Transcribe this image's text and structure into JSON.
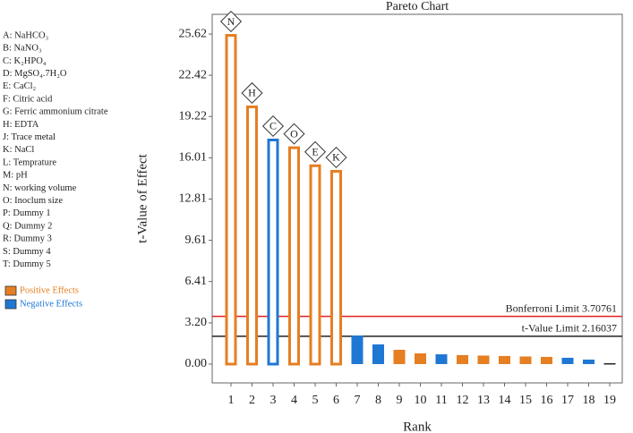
{
  "chart_data": {
    "type": "bar",
    "title": "Pareto Chart",
    "x_label": "Rank",
    "y_label": "t-Value of Effect",
    "categories": [
      1,
      2,
      3,
      4,
      5,
      6,
      7,
      8,
      9,
      10,
      11,
      12,
      13,
      14,
      15,
      16,
      17,
      18,
      19
    ],
    "values": [
      25.62,
      20.07,
      17.5,
      16.9,
      15.5,
      15.07,
      2.22,
      1.53,
      1.11,
      0.83,
      0.76,
      0.7,
      0.66,
      0.63,
      0.59,
      0.56,
      0.49,
      0.35,
      0.07
    ],
    "colors": [
      "#e67e22",
      "#e67e22",
      "#1f77d4",
      "#e67e22",
      "#e67e22",
      "#e67e22",
      "#1f77d4",
      "#1f77d4",
      "#e67e22",
      "#e67e22",
      "#1f77d4",
      "#e67e22",
      "#e67e22",
      "#e67e22",
      "#e67e22",
      "#e67e22",
      "#1f77d4",
      "#1f77d4",
      "#222222"
    ],
    "bar_labels": [
      "N",
      "H",
      "C",
      "O",
      "E",
      "K",
      null,
      null,
      null,
      null,
      null,
      null,
      null,
      null,
      null,
      null,
      null,
      null,
      null
    ],
    "ylim": [
      -1.46,
      27.15
    ],
    "yticks": [
      {
        "value": 0,
        "label": "0.00"
      },
      {
        "value": 3.2,
        "label": "3.20"
      },
      {
        "value": 6.41,
        "label": "6.41"
      },
      {
        "value": 9.61,
        "label": "9.61"
      },
      {
        "value": 12.81,
        "label": "12.81"
      },
      {
        "value": 16.01,
        "label": "16.01"
      },
      {
        "value": 19.22,
        "label": "19.22"
      },
      {
        "value": 22.42,
        "label": "22.42"
      },
      {
        "value": 25.62,
        "label": "25.62"
      }
    ],
    "reference_lines": [
      {
        "label": "Bonferroni Limit 3.70761",
        "value": 3.70761,
        "color": "#e02020"
      },
      {
        "label": "t-Value Limit 2.16037",
        "value": 2.16037,
        "color": "#222222"
      }
    ],
    "legend": [
      {
        "name": "Positive Effects",
        "color": "#e67e22"
      },
      {
        "name": "Negative Effects",
        "color": "#1f77d4"
      }
    ],
    "factor_key": [
      "A: NaHCO₃",
      "B: NaNO₃",
      "C: K₂HPO₄",
      "D: MgSO₄.7H₂O",
      "E: CaCl₂",
      "F: Citric acid",
      "G: Ferric ammonium citrate",
      "H: EDTA",
      "J: Trace metal",
      "K: NaCl",
      "L: Temprature",
      "M: pH",
      "N: working volume",
      "O:  Inoclum size",
      "P: Dummy 1",
      "Q: Dummy 2",
      "R: Dummy 3",
      "S: Dummy 4",
      "T: Dummy 5"
    ]
  }
}
